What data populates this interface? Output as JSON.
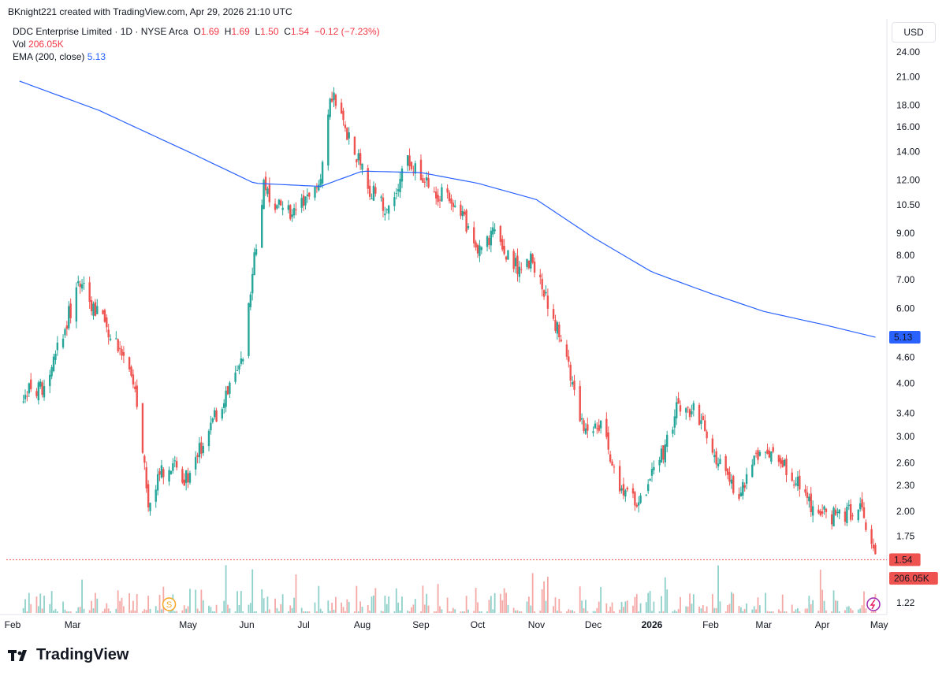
{
  "header": {
    "credit": "BKnight221 created with TradingView.com, Apr 29, 2026 21:10 UTC"
  },
  "legend": {
    "symbol": "DDC Enterprise Limited · 1D · NYSE Arca",
    "o_label": "O",
    "o": "1.69",
    "h_label": "H",
    "h": "1.69",
    "l_label": "L",
    "l": "1.50",
    "c_label": "C",
    "c": "1.54",
    "change": "−0.12 (−7.23%)",
    "vol_label": "Vol",
    "vol": "206.05K",
    "ema_label": "EMA (200, close)",
    "ema": "5.13"
  },
  "currency_button": "USD",
  "brand": "TradingView",
  "colors": {
    "up": "#26a69a",
    "down": "#ef5350",
    "ema": "#2962ff",
    "vol_up": "#8fd1ca",
    "vol_down": "#f5a9a7"
  },
  "chart_data": {
    "type": "candlestick",
    "y_scale": "log",
    "y_ticks": [
      "24.00",
      "21.00",
      "18.00",
      "16.00",
      "14.00",
      "12.00",
      "10.50",
      "9.00",
      "8.00",
      "7.00",
      "6.00",
      "4.60",
      "4.00",
      "3.40",
      "3.00",
      "2.60",
      "2.30",
      "2.00",
      "1.75",
      "1.22"
    ],
    "x_ticks": [
      "Feb",
      "Mar",
      "May",
      "Jun",
      "Jul",
      "Aug",
      "Sep",
      "Oct",
      "Nov",
      "Dec",
      "2026",
      "Feb",
      "Mar",
      "Apr",
      "May"
    ],
    "last_price_label": "1.54",
    "ema_label": "5.13",
    "volume_label": "206.05K",
    "price_anchors": [
      [
        "2025-02-01",
        3.8
      ],
      [
        "2025-02-15",
        3.9
      ],
      [
        "2025-02-25",
        5.5
      ],
      [
        "2025-03-05",
        6.8
      ],
      [
        "2025-03-12",
        6.0
      ],
      [
        "2025-03-25",
        5.0
      ],
      [
        "2025-04-05",
        3.5
      ],
      [
        "2025-04-10",
        2.0
      ],
      [
        "2025-04-15",
        2.4
      ],
      [
        "2025-04-20",
        2.6
      ],
      [
        "2025-04-30",
        2.4
      ],
      [
        "2025-05-10",
        3.0
      ],
      [
        "2025-05-20",
        3.7
      ],
      [
        "2025-05-30",
        4.5
      ],
      [
        "2025-06-05",
        8.0
      ],
      [
        "2025-06-10",
        11.5
      ],
      [
        "2025-06-20",
        10.0
      ],
      [
        "2025-07-01",
        10.5
      ],
      [
        "2025-07-10",
        12.5
      ],
      [
        "2025-07-15",
        19.5
      ],
      [
        "2025-07-25",
        15.0
      ],
      [
        "2025-08-05",
        11.5
      ],
      [
        "2025-08-15",
        10.0
      ],
      [
        "2025-08-25",
        13.5
      ],
      [
        "2025-09-05",
        11.5
      ],
      [
        "2025-09-20",
        10.5
      ],
      [
        "2025-10-01",
        8.0
      ],
      [
        "2025-10-10",
        9.0
      ],
      [
        "2025-10-20",
        7.5
      ],
      [
        "2025-10-30",
        7.8
      ],
      [
        "2025-11-05",
        6.5
      ],
      [
        "2025-11-15",
        5.0
      ],
      [
        "2025-11-25",
        3.2
      ],
      [
        "2025-12-05",
        3.2
      ],
      [
        "2025-12-15",
        2.2
      ],
      [
        "2025-12-25",
        2.1
      ],
      [
        "2026-01-05",
        2.6
      ],
      [
        "2026-01-15",
        3.6
      ],
      [
        "2026-01-25",
        3.4
      ],
      [
        "2026-02-05",
        2.6
      ],
      [
        "2026-02-15",
        2.2
      ],
      [
        "2026-02-25",
        2.7
      ],
      [
        "2026-03-05",
        2.7
      ],
      [
        "2026-03-15",
        2.5
      ],
      [
        "2026-03-25",
        2.1
      ],
      [
        "2026-04-05",
        1.95
      ],
      [
        "2026-04-15",
        2.0
      ],
      [
        "2026-04-22",
        2.05
      ],
      [
        "2026-04-29",
        1.54
      ]
    ],
    "ema_anchors": [
      [
        "2025-02-01",
        20.5
      ],
      [
        "2025-03-15",
        17.5
      ],
      [
        "2025-05-01",
        14.0
      ],
      [
        "2025-06-05",
        11.8
      ],
      [
        "2025-07-10",
        11.6
      ],
      [
        "2025-08-01",
        12.6
      ],
      [
        "2025-09-01",
        12.5
      ],
      [
        "2025-10-01",
        11.8
      ],
      [
        "2025-11-01",
        10.8
      ],
      [
        "2025-12-01",
        8.8
      ],
      [
        "2026-01-01",
        7.3
      ],
      [
        "2026-02-01",
        6.5
      ],
      [
        "2026-03-01",
        5.9
      ],
      [
        "2026-04-01",
        5.5
      ],
      [
        "2026-04-29",
        5.13
      ]
    ]
  }
}
